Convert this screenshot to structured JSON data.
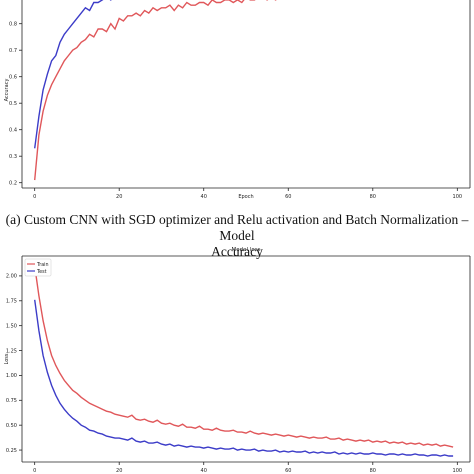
{
  "caption": {
    "line1": "(a)  Custom CNN with SGD optimizer and Relu activation and Batch Normalization – Model",
    "line2": "Accuracy"
  },
  "chart_data": [
    {
      "type": "line",
      "title": "",
      "xlabel": "Epoch",
      "ylabel": "Accuracy",
      "xlim": [
        -3,
        103
      ],
      "ylim": [
        0.18,
        0.98
      ],
      "xticks": [
        "0",
        "20",
        "40",
        "60",
        "80",
        "100"
      ],
      "yticks": [
        "0.2",
        "0.3",
        "0.4",
        "0.5",
        "0.6",
        "0.7",
        "0.8",
        "0.9"
      ],
      "grid": false,
      "legend": "hidden",
      "series_colors": [
        "#e0575a",
        "#3c3cc8"
      ],
      "series": [
        {
          "x": [
            0,
            1,
            2,
            3,
            4,
            5,
            6,
            7,
            8,
            9,
            10,
            11,
            12,
            13,
            14,
            15,
            16,
            17,
            18,
            19,
            20,
            21,
            22,
            23,
            24,
            25,
            26,
            27,
            28,
            29,
            30,
            31,
            32,
            33,
            34,
            35,
            36,
            37,
            38,
            39,
            40,
            41,
            42,
            43,
            44,
            45,
            46,
            47,
            48,
            49,
            50,
            51,
            52,
            53,
            54,
            55,
            56,
            57,
            58,
            59,
            60,
            61,
            62,
            63,
            64,
            65,
            66,
            67,
            68,
            69,
            70,
            71,
            72,
            73,
            74,
            75,
            76,
            77,
            78,
            79,
            80,
            81,
            82,
            83,
            84,
            85,
            86,
            87,
            88,
            89,
            90,
            91,
            92,
            93,
            94,
            95,
            96,
            97,
            98,
            99
          ],
          "values": [
            0.21,
            0.38,
            0.47,
            0.53,
            0.57,
            0.6,
            0.63,
            0.66,
            0.68,
            0.7,
            0.71,
            0.73,
            0.74,
            0.76,
            0.75,
            0.78,
            0.78,
            0.77,
            0.8,
            0.78,
            0.82,
            0.81,
            0.83,
            0.83,
            0.84,
            0.83,
            0.85,
            0.84,
            0.86,
            0.85,
            0.86,
            0.86,
            0.87,
            0.85,
            0.87,
            0.86,
            0.88,
            0.87,
            0.87,
            0.88,
            0.88,
            0.87,
            0.89,
            0.88,
            0.88,
            0.89,
            0.89,
            0.88,
            0.89,
            0.88,
            0.9,
            0.89,
            0.89,
            0.9,
            0.9,
            0.89,
            0.9,
            0.89,
            0.9,
            0.9,
            0.9,
            0.91,
            0.9,
            0.9,
            0.91,
            0.9,
            0.91,
            0.91,
            0.9,
            0.91,
            0.91,
            0.91,
            0.9,
            0.91,
            0.91,
            0.91,
            0.92,
            0.91,
            0.91,
            0.92,
            0.91,
            0.92,
            0.91,
            0.92,
            0.92,
            0.91,
            0.92,
            0.92,
            0.92,
            0.91,
            0.92,
            0.92,
            0.93,
            0.92,
            0.92,
            0.92,
            0.93,
            0.92,
            0.92,
            0.93
          ]
        },
        {
          "x": [
            0,
            1,
            2,
            3,
            4,
            5,
            6,
            7,
            8,
            9,
            10,
            11,
            12,
            13,
            14,
            15,
            16,
            17,
            18,
            19,
            20,
            21,
            22,
            23,
            24,
            25,
            26
          ],
          "values": [
            0.33,
            0.45,
            0.55,
            0.61,
            0.66,
            0.68,
            0.73,
            0.76,
            0.78,
            0.8,
            0.82,
            0.84,
            0.86,
            0.85,
            0.88,
            0.88,
            0.89,
            0.9,
            0.89,
            0.91,
            0.92,
            0.91,
            0.93,
            0.92,
            0.93,
            0.94,
            0.94
          ]
        }
      ]
    },
    {
      "type": "line",
      "title": "Model loss",
      "xlabel": "",
      "ylabel": "Loss",
      "xlim": [
        -3,
        103
      ],
      "ylim": [
        0.13,
        2.2
      ],
      "xticks": [
        "0",
        "20",
        "40",
        "60",
        "80",
        "100"
      ],
      "yticks": [
        "0.25",
        "0.50",
        "0.75",
        "1.00",
        "1.25",
        "1.50",
        "1.75",
        "2.00"
      ],
      "grid": false,
      "legend": "top-left",
      "series_colors": [
        "#e0575a",
        "#3c3cc8"
      ],
      "series": [
        {
          "name": "Train",
          "x": [
            0,
            1,
            2,
            3,
            4,
            5,
            6,
            7,
            8,
            9,
            10,
            11,
            12,
            13,
            14,
            15,
            16,
            17,
            18,
            19,
            20,
            21,
            22,
            23,
            24,
            25,
            26,
            27,
            28,
            29,
            30,
            31,
            32,
            33,
            34,
            35,
            36,
            37,
            38,
            39,
            40,
            41,
            42,
            43,
            44,
            45,
            46,
            47,
            48,
            49,
            50,
            51,
            52,
            53,
            54,
            55,
            56,
            57,
            58,
            59,
            60,
            61,
            62,
            63,
            64,
            65,
            66,
            67,
            68,
            69,
            70,
            71,
            72,
            73,
            74,
            75,
            76,
            77,
            78,
            79,
            80,
            81,
            82,
            83,
            84,
            85,
            86,
            87,
            88,
            89,
            90,
            91,
            92,
            93,
            94,
            95,
            96,
            97,
            98,
            99
          ],
          "values": [
            2.1,
            1.8,
            1.55,
            1.35,
            1.2,
            1.1,
            1.02,
            0.95,
            0.9,
            0.85,
            0.82,
            0.78,
            0.75,
            0.72,
            0.7,
            0.68,
            0.66,
            0.64,
            0.63,
            0.61,
            0.6,
            0.59,
            0.58,
            0.6,
            0.56,
            0.55,
            0.56,
            0.54,
            0.53,
            0.55,
            0.52,
            0.51,
            0.52,
            0.5,
            0.49,
            0.51,
            0.48,
            0.48,
            0.47,
            0.49,
            0.46,
            0.46,
            0.45,
            0.47,
            0.45,
            0.44,
            0.44,
            0.45,
            0.43,
            0.43,
            0.42,
            0.44,
            0.42,
            0.41,
            0.42,
            0.41,
            0.4,
            0.41,
            0.4,
            0.39,
            0.4,
            0.39,
            0.38,
            0.39,
            0.38,
            0.37,
            0.38,
            0.37,
            0.37,
            0.38,
            0.36,
            0.36,
            0.37,
            0.35,
            0.36,
            0.35,
            0.34,
            0.35,
            0.34,
            0.35,
            0.33,
            0.34,
            0.33,
            0.34,
            0.32,
            0.33,
            0.32,
            0.33,
            0.31,
            0.32,
            0.31,
            0.32,
            0.3,
            0.31,
            0.3,
            0.31,
            0.29,
            0.3,
            0.29,
            0.28
          ]
        },
        {
          "name": "Test",
          "x": [
            0,
            1,
            2,
            3,
            4,
            5,
            6,
            7,
            8,
            9,
            10,
            11,
            12,
            13,
            14,
            15,
            16,
            17,
            18,
            19,
            20,
            21,
            22,
            23,
            24,
            25,
            26,
            27,
            28,
            29,
            30,
            31,
            32,
            33,
            34,
            35,
            36,
            37,
            38,
            39,
            40,
            41,
            42,
            43,
            44,
            45,
            46,
            47,
            48,
            49,
            50,
            51,
            52,
            53,
            54,
            55,
            56,
            57,
            58,
            59,
            60,
            61,
            62,
            63,
            64,
            65,
            66,
            67,
            68,
            69,
            70,
            71,
            72,
            73,
            74,
            75,
            76,
            77,
            78,
            79,
            80,
            81,
            82,
            83,
            84,
            85,
            86,
            87,
            88,
            89,
            90,
            91,
            92,
            93,
            94,
            95,
            96,
            97,
            98,
            99
          ],
          "values": [
            1.76,
            1.45,
            1.2,
            1.03,
            0.9,
            0.8,
            0.72,
            0.66,
            0.61,
            0.57,
            0.54,
            0.5,
            0.48,
            0.45,
            0.44,
            0.42,
            0.41,
            0.39,
            0.38,
            0.37,
            0.37,
            0.36,
            0.35,
            0.37,
            0.34,
            0.33,
            0.34,
            0.32,
            0.32,
            0.33,
            0.31,
            0.3,
            0.31,
            0.29,
            0.3,
            0.29,
            0.28,
            0.29,
            0.28,
            0.28,
            0.27,
            0.28,
            0.27,
            0.26,
            0.27,
            0.26,
            0.26,
            0.27,
            0.25,
            0.26,
            0.25,
            0.25,
            0.26,
            0.24,
            0.25,
            0.24,
            0.24,
            0.25,
            0.23,
            0.24,
            0.23,
            0.24,
            0.23,
            0.23,
            0.24,
            0.22,
            0.23,
            0.22,
            0.23,
            0.22,
            0.22,
            0.23,
            0.21,
            0.22,
            0.21,
            0.22,
            0.21,
            0.22,
            0.21,
            0.21,
            0.22,
            0.21,
            0.21,
            0.2,
            0.21,
            0.21,
            0.2,
            0.21,
            0.2,
            0.2,
            0.21,
            0.2,
            0.2,
            0.19,
            0.2,
            0.2,
            0.19,
            0.2,
            0.19,
            0.19
          ]
        }
      ]
    }
  ]
}
